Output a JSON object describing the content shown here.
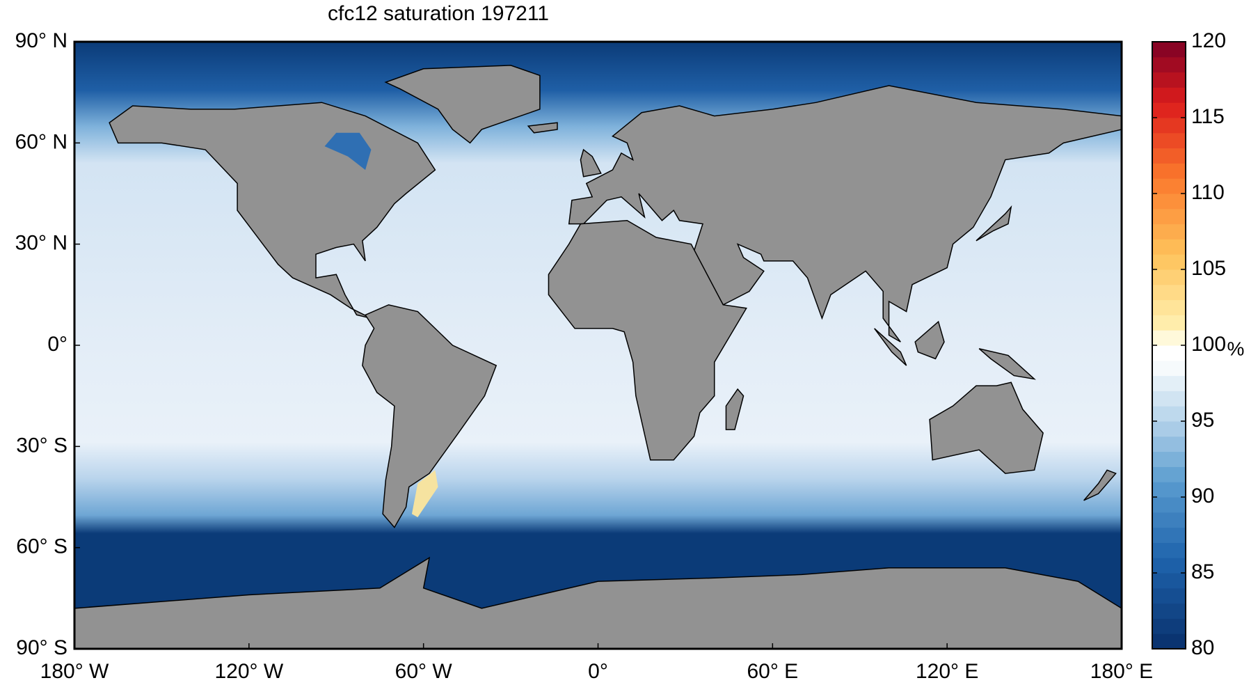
{
  "chart_data": {
    "type": "map",
    "title": "cfc12 saturation 197211",
    "xlim": [
      -180,
      180
    ],
    "ylim": [
      -90,
      90
    ],
    "xticks": [
      {
        "value": -180,
        "label": "180° W"
      },
      {
        "value": -120,
        "label": "120° W"
      },
      {
        "value": -60,
        "label": "60° W"
      },
      {
        "value": 0,
        "label": "0°"
      },
      {
        "value": 60,
        "label": "60° E"
      },
      {
        "value": 120,
        "label": "120° E"
      },
      {
        "value": 180,
        "label": "180° E"
      }
    ],
    "yticks": [
      {
        "value": 90,
        "label": "90° N"
      },
      {
        "value": 60,
        "label": "60° N"
      },
      {
        "value": 30,
        "label": "30° N"
      },
      {
        "value": 0,
        "label": "0°"
      },
      {
        "value": -30,
        "label": "30° S"
      },
      {
        "value": -60,
        "label": "60° S"
      },
      {
        "value": -90,
        "label": "90° S"
      }
    ],
    "colorbar": {
      "label": "%",
      "lim": [
        80,
        120
      ],
      "ticks": [
        80,
        85,
        90,
        95,
        100,
        105,
        110,
        115,
        120
      ],
      "colormap": [
        {
          "value": 80,
          "color": "#08306b"
        },
        {
          "value": 86,
          "color": "#1f64ad"
        },
        {
          "value": 91,
          "color": "#5a9ccf"
        },
        {
          "value": 95,
          "color": "#b5d3ea"
        },
        {
          "value": 99,
          "color": "#ffffff"
        },
        {
          "value": 100,
          "color": "#ffffff"
        },
        {
          "value": 101,
          "color": "#fff2b4"
        },
        {
          "value": 106,
          "color": "#fec25a"
        },
        {
          "value": 111,
          "color": "#fb7a2d"
        },
        {
          "value": 116,
          "color": "#dc1c1c"
        },
        {
          "value": 120,
          "color": "#7d0025"
        }
      ]
    }
  }
}
